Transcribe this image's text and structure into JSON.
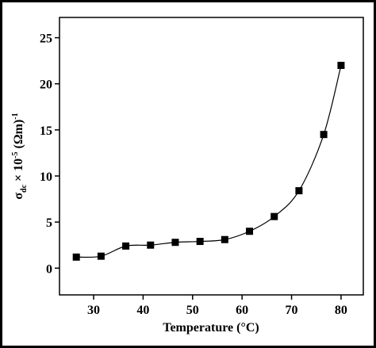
{
  "chart_data": {
    "type": "line",
    "x_label": "Temperature (°C)",
    "y_label": [
      "σ",
      "dc",
      " × 10",
      "-5",
      " (Ωm)",
      "-1"
    ],
    "x": [
      26.5,
      31.5,
      36.5,
      41.5,
      46.5,
      51.5,
      56.5,
      61.5,
      66.5,
      71.5,
      76.5,
      80.0
    ],
    "series": [
      {
        "color": "#000000",
        "values": [
          1.2,
          1.3,
          2.4,
          2.5,
          2.8,
          2.9,
          3.1,
          4.0,
          5.6,
          8.4,
          14.5,
          22.0
        ]
      }
    ],
    "xlim": [
      23.1,
      84.5
    ],
    "ylim": [
      -2.9,
      27.2
    ],
    "xticks": [
      30,
      40,
      50,
      60,
      70,
      80
    ],
    "yticks": [
      0,
      5,
      10,
      15,
      20,
      25
    ],
    "markers": "square",
    "smooth": true
  }
}
